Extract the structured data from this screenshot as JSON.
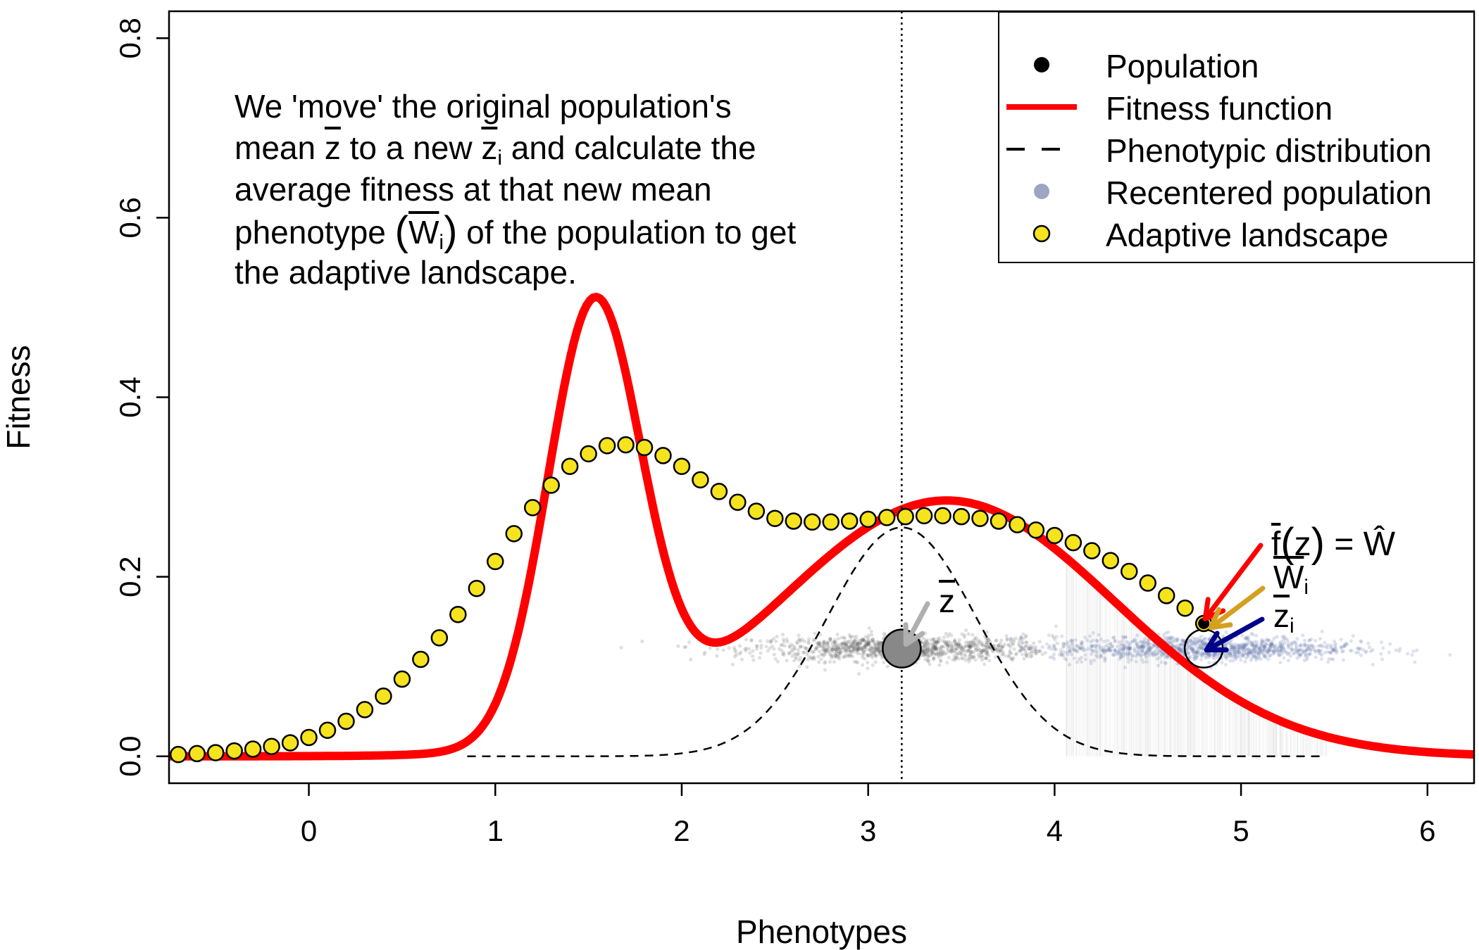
{
  "chart_data": {
    "type": "scatter",
    "xlabel": "Phenotypes",
    "ylabel": "Fitness",
    "xlim": [
      -0.75,
      6.25
    ],
    "ylim": [
      -0.03,
      0.83
    ],
    "x_ticks": [
      0,
      1,
      2,
      3,
      4,
      5,
      6
    ],
    "y_ticks": [
      0.0,
      0.2,
      0.4,
      0.6,
      0.8
    ],
    "x_tick_labels": [
      "0",
      "1",
      "2",
      "3",
      "4",
      "5",
      "6"
    ],
    "y_tick_labels": [
      "0.0",
      "0.2",
      "0.4",
      "0.6",
      "0.8"
    ],
    "grid": false,
    "legend_position": "top-right",
    "legend": [
      {
        "label": "Population",
        "symbol": "filled-circle",
        "color": "#000000"
      },
      {
        "label": "Fitness function",
        "symbol": "line",
        "color": "#ff0000"
      },
      {
        "label": "Phenotypic distribution",
        "symbol": "dashed-line",
        "color": "#000000"
      },
      {
        "label": "Recentered population",
        "symbol": "filled-circle",
        "color": "#8b96b8"
      },
      {
        "label": "Adaptive landscape",
        "symbol": "circle-with-border",
        "color": "#f5e31e"
      }
    ],
    "fitness_function": {
      "name": "Fitness function",
      "color": "#ff0000",
      "components": [
        {
          "height": 0.48,
          "mean": 1.53,
          "sd": 0.25
        },
        {
          "height": 0.285,
          "mean": 3.42,
          "sd": 0.9
        }
      ]
    },
    "phenotypic_distribution": {
      "name": "Phenotypic distribution",
      "color": "#000000",
      "peak": 0.255,
      "mean": 3.18,
      "sd": 0.4,
      "x_range": [
        0.85,
        5.45
      ]
    },
    "adaptive_landscape": {
      "name": "Adaptive landscape",
      "fill": "#f5e31e",
      "x": [
        -0.7,
        -0.6,
        -0.5,
        -0.4,
        -0.3,
        -0.2,
        -0.1,
        0.0,
        0.1,
        0.2,
        0.3,
        0.4,
        0.5,
        0.6,
        0.7,
        0.8,
        0.9,
        1.0,
        1.1,
        1.2,
        1.3,
        1.4,
        1.5,
        1.6,
        1.7,
        1.8,
        1.9,
        2.0,
        2.1,
        2.2,
        2.3,
        2.4,
        2.5,
        2.6,
        2.7,
        2.8,
        2.9,
        3.0,
        3.1,
        3.2,
        3.3,
        3.4,
        3.5,
        3.6,
        3.7,
        3.8,
        3.9,
        4.0,
        4.1,
        4.2,
        4.3,
        4.4,
        4.5,
        4.6,
        4.7,
        4.8
      ],
      "y": [
        0.002,
        0.003,
        0.004,
        0.006,
        0.008,
        0.011,
        0.015,
        0.021,
        0.029,
        0.039,
        0.052,
        0.067,
        0.086,
        0.108,
        0.132,
        0.158,
        0.187,
        0.217,
        0.248,
        0.277,
        0.302,
        0.323,
        0.337,
        0.346,
        0.347,
        0.344,
        0.335,
        0.323,
        0.308,
        0.295,
        0.283,
        0.273,
        0.265,
        0.262,
        0.261,
        0.261,
        0.262,
        0.264,
        0.266,
        0.267,
        0.268,
        0.268,
        0.267,
        0.265,
        0.262,
        0.258,
        0.252,
        0.246,
        0.238,
        0.229,
        0.218,
        0.206,
        0.193,
        0.179,
        0.165,
        0.148
      ]
    },
    "population": {
      "name": "Population",
      "mean_x": 3.18,
      "y_level": 0.12,
      "sd": 0.4,
      "n": 1200,
      "color": "#000000"
    },
    "recentered_population": {
      "name": "Recentered population",
      "mean_x": 4.8,
      "y_level": 0.12,
      "sd": 0.4,
      "n": 1200,
      "color": "#8b96b8"
    },
    "mean_line_x": 3.18,
    "markers": [
      {
        "id": "zbar",
        "x": 3.18,
        "y": 0.12
      },
      {
        "id": "zi",
        "x": 4.8,
        "y": 0.12
      },
      {
        "id": "wi",
        "x": 4.8,
        "y": 0.148
      }
    ],
    "arrows": [
      {
        "id": "f-arrow",
        "color": "#ff0000",
        "to_x": 4.8,
        "to_y": 0.15
      },
      {
        "id": "w-arrow",
        "color": "#d4a020",
        "to_x": 4.8,
        "to_y": 0.148
      },
      {
        "id": "zi-arrow",
        "color": "#00008b",
        "to_x": 4.8,
        "to_y": 0.12
      },
      {
        "id": "zbar-arrow",
        "color": "#b0b0b0",
        "to_x": 3.18,
        "to_y": 0.12
      }
    ],
    "annotation": {
      "line1": "We 'move' the original population's",
      "line2_a": "mean ",
      "line2_zbar": "z",
      "line2_b": " to a new ",
      "line2_zi": "z",
      "line2_zi_sub": "i",
      "line2_c": " and calculate the",
      "line3": "average fitness at that new mean",
      "line4_a": "phenotype ",
      "line4_w": "W",
      "line4_w_sub": "i",
      "line4_b": " of the population to get",
      "line5": "the adaptive landscape."
    },
    "point_labels": {
      "f_label": "f",
      "f_z": "z",
      "f_eq": " = ",
      "f_w": "Ŵ",
      "w_label": "W",
      "w_sub": "i",
      "zi_label": "z",
      "zi_sub": "i",
      "zbar_label": "z"
    }
  }
}
